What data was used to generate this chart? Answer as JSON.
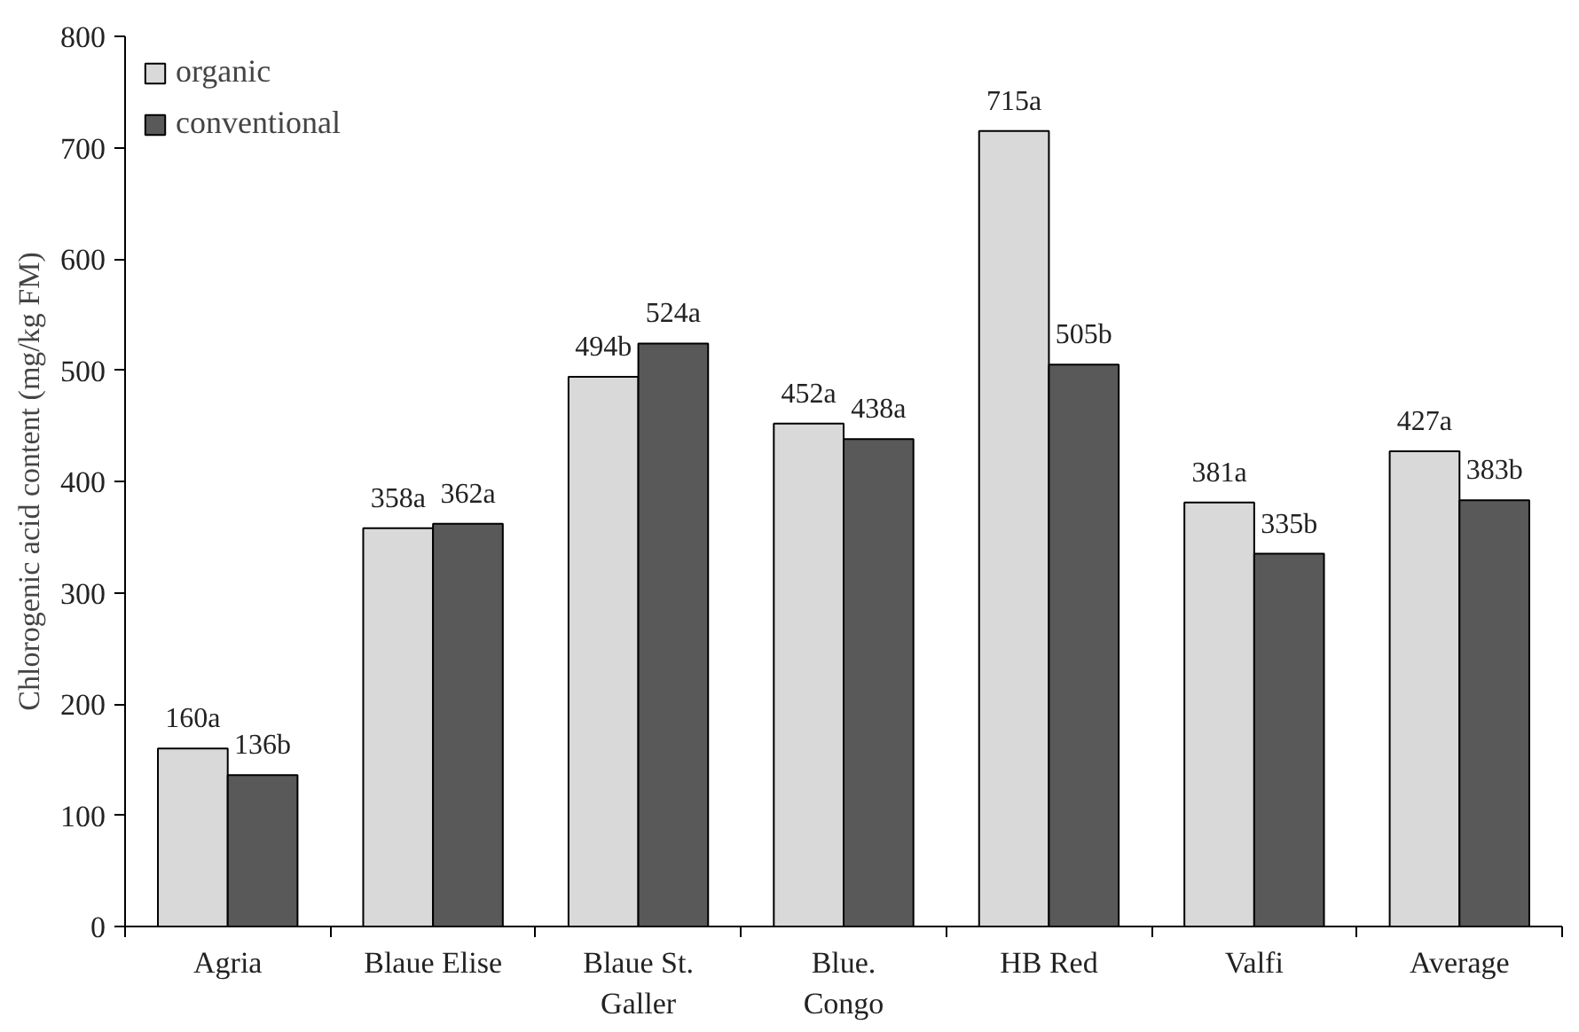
{
  "chart_data": {
    "type": "bar",
    "ylabel": "Chlorogenic acid content (mg/kg FM)",
    "categories": [
      "Agria",
      "Blaue Elise",
      "Blaue St.\nGaller",
      "Blue.\nCongo",
      "HB Red",
      "Valfi",
      "Average"
    ],
    "series": [
      {
        "name": "organic",
        "color": "#d9d9d9",
        "values": [
          160,
          358,
          494,
          452,
          715,
          381,
          427
        ],
        "value_labels": [
          "160a",
          "358a",
          "494b",
          "452a",
          "715a",
          "381a",
          "427a"
        ]
      },
      {
        "name": "conventional",
        "color": "#595959",
        "values": [
          136,
          362,
          524,
          438,
          505,
          335,
          383
        ],
        "value_labels": [
          "136b",
          "362a",
          "524a",
          "438a",
          "505b",
          "335b",
          "383b"
        ]
      }
    ],
    "ylim": [
      0,
      800
    ],
    "yticks": [
      0,
      100,
      200,
      300,
      400,
      500,
      600,
      700,
      800
    ],
    "grid": false,
    "legend": "top left"
  }
}
